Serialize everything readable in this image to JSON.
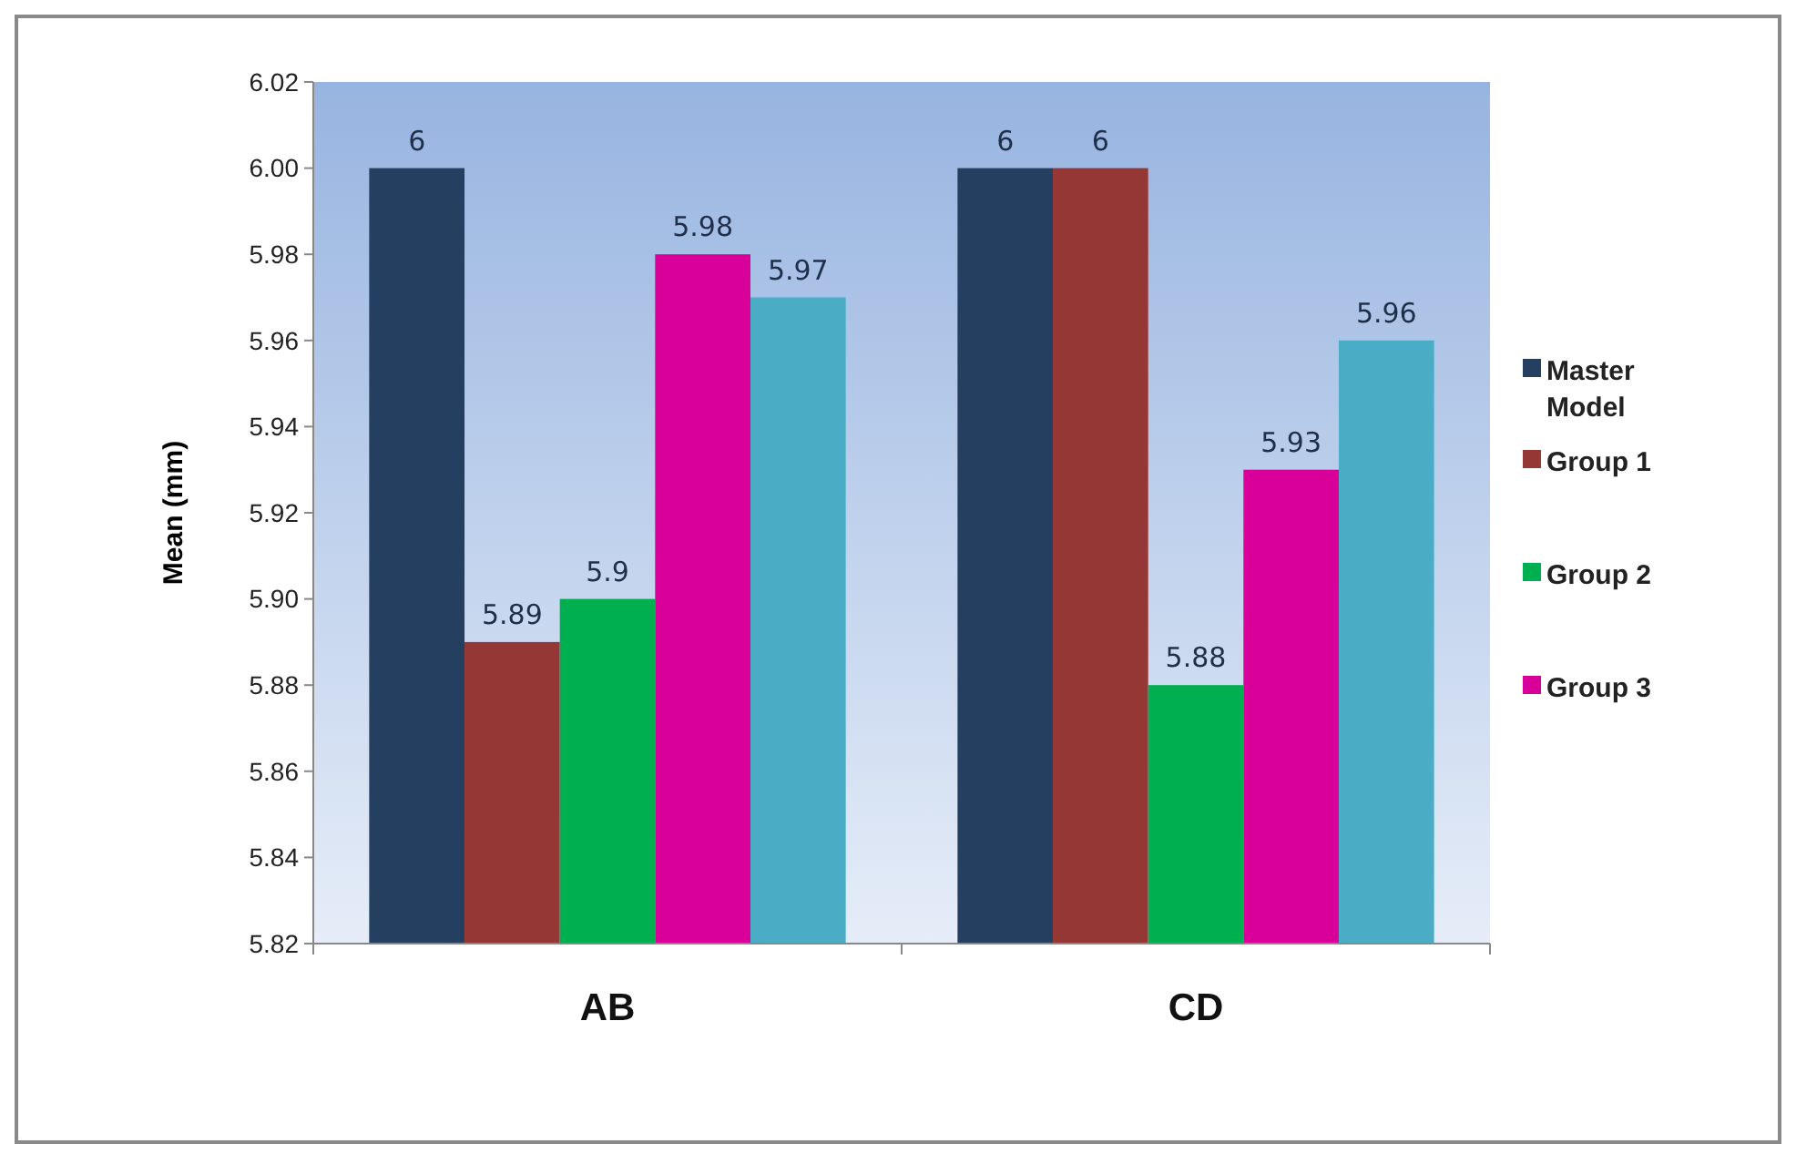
{
  "chart_data": {
    "type": "bar",
    "ylabel": "Mean (mm)",
    "categories": [
      "AB",
      "CD"
    ],
    "series": [
      {
        "name": "Master Model",
        "color": "#243f60",
        "values": [
          6,
          6
        ]
      },
      {
        "name": "Group 1",
        "color": "#953735",
        "values": [
          5.89,
          6
        ]
      },
      {
        "name": "Group 2",
        "color": "#00b050",
        "values": [
          5.9,
          5.88
        ]
      },
      {
        "name": "Group 3",
        "color": "#d9009a",
        "values": [
          5.98,
          5.93
        ]
      },
      {
        "color": "#4bacc6",
        "values": [
          5.97,
          5.96
        ]
      }
    ],
    "ylim": [
      5.82,
      6.02
    ],
    "yticks": [
      5.82,
      5.84,
      5.86,
      5.88,
      {
        "value": 5.9,
        "label": "5.90"
      },
      5.92,
      5.94,
      5.96,
      5.98,
      {
        "value": 6,
        "label": "6.00"
      },
      6.02
    ],
    "data_labels": true,
    "legend": "right",
    "grid": false
  }
}
